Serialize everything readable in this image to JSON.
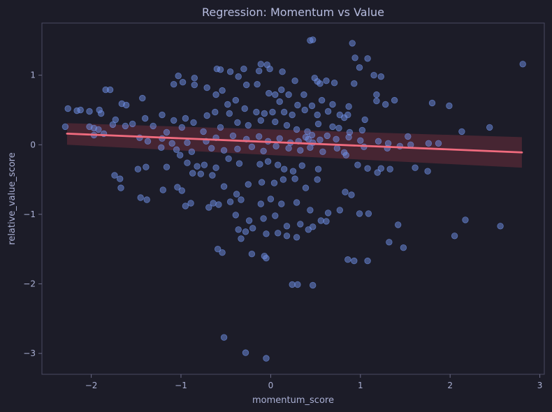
{
  "chart_data": {
    "type": "scatter",
    "title": "Regression: Momentum vs Value",
    "xlabel": "momentum_score",
    "ylabel": "relative_value_score",
    "xlim": [
      -2.55,
      3.05
    ],
    "ylim": [
      -3.3,
      1.75
    ],
    "xticks": [
      -2,
      -1,
      0,
      1,
      2,
      3
    ],
    "xtick_labels": [
      "−2",
      "−1",
      "0",
      "1",
      "2",
      "3"
    ],
    "yticks": [
      -3,
      -2,
      -1,
      0,
      1
    ],
    "ytick_labels": [
      "−3",
      "−2",
      "−1",
      "0",
      "1"
    ],
    "grid": false,
    "colors": {
      "background": "#1c1c28",
      "points": "#6f90e6",
      "line": "#f06b7e",
      "band": "#6a2d3a",
      "frame": "#4a4a62"
    },
    "regression": {
      "x": [
        -2.27,
        2.8
      ],
      "y": [
        0.16,
        -0.11
      ],
      "ci_at_x_min": [
        0.0,
        0.31
      ],
      "ci_at_x_max": [
        -0.33,
        0.11
      ]
    },
    "points": [
      [
        0.44,
        1.5
      ],
      [
        0.47,
        1.51
      ],
      [
        0.91,
        1.46
      ],
      [
        2.81,
        1.16
      ],
      [
        0.94,
        1.25
      ],
      [
        1.08,
        1.24
      ],
      [
        -0.11,
        1.16
      ],
      [
        -0.04,
        1.15
      ],
      [
        0.99,
        1.11
      ],
      [
        -0.56,
        1.08
      ],
      [
        -0.6,
        1.09
      ],
      [
        -0.3,
        1.09
      ],
      [
        -0.45,
        1.05
      ],
      [
        -1.03,
        0.99
      ],
      [
        0.13,
        1.05
      ],
      [
        -0.01,
        1.09
      ],
      [
        -0.13,
        1.06
      ],
      [
        0.49,
        0.96
      ],
      [
        1.15,
        1.0
      ],
      [
        1.23,
        0.98
      ],
      [
        -0.85,
        0.86
      ],
      [
        -0.98,
        0.9
      ],
      [
        -1.08,
        0.87
      ],
      [
        -0.85,
        0.96
      ],
      [
        -0.36,
        0.98
      ],
      [
        0.52,
        0.91
      ],
      [
        0.55,
        0.88
      ],
      [
        0.71,
        0.89
      ],
      [
        -0.15,
        0.87
      ],
      [
        -0.27,
        0.86
      ],
      [
        0.62,
        0.92
      ],
      [
        0.27,
        0.92
      ],
      [
        0.12,
        0.79
      ],
      [
        -0.02,
        0.74
      ],
      [
        0.05,
        0.72
      ],
      [
        0.2,
        0.72
      ],
      [
        -0.71,
        0.82
      ],
      [
        -0.54,
        0.78
      ],
      [
        0.37,
        0.72
      ],
      [
        0.93,
        0.88
      ],
      [
        1.18,
        0.72
      ],
      [
        -1.84,
        0.79
      ],
      [
        -1.79,
        0.79
      ],
      [
        -1.66,
        0.59
      ],
      [
        -1.61,
        0.57
      ],
      [
        -1.43,
        0.67
      ],
      [
        -0.39,
        0.64
      ],
      [
        -0.48,
        0.58
      ],
      [
        -0.61,
        0.72
      ],
      [
        0.1,
        0.62
      ],
      [
        0.3,
        0.57
      ],
      [
        0.46,
        0.56
      ],
      [
        0.57,
        0.64
      ],
      [
        0.69,
        0.58
      ],
      [
        1.38,
        0.64
      ],
      [
        1.18,
        0.63
      ],
      [
        1.28,
        0.58
      ],
      [
        1.8,
        0.6
      ],
      [
        1.99,
        0.56
      ],
      [
        0.87,
        0.55
      ],
      [
        -2.26,
        0.52
      ],
      [
        -2.16,
        0.49
      ],
      [
        -2.12,
        0.5
      ],
      [
        -2.02,
        0.48
      ],
      [
        -1.91,
        0.5
      ],
      [
        -1.89,
        0.45
      ],
      [
        -1.73,
        0.36
      ],
      [
        -1.4,
        0.38
      ],
      [
        -1.21,
        0.43
      ],
      [
        -1.08,
        0.35
      ],
      [
        -0.95,
        0.38
      ],
      [
        -0.71,
        0.42
      ],
      [
        -0.62,
        0.47
      ],
      [
        -0.46,
        0.45
      ],
      [
        -0.29,
        0.52
      ],
      [
        -0.16,
        0.47
      ],
      [
        -0.07,
        0.45
      ],
      [
        0.02,
        0.47
      ],
      [
        0.15,
        0.47
      ],
      [
        0.24,
        0.43
      ],
      [
        0.38,
        0.5
      ],
      [
        0.52,
        0.43
      ],
      [
        0.64,
        0.48
      ],
      [
        0.77,
        0.43
      ],
      [
        0.82,
        0.39
      ],
      [
        1.05,
        0.36
      ],
      [
        0.86,
        0.43
      ],
      [
        -2.02,
        0.26
      ],
      [
        -1.97,
        0.24
      ],
      [
        -1.92,
        0.22
      ],
      [
        -1.76,
        0.29
      ],
      [
        -1.62,
        0.27
      ],
      [
        -1.54,
        0.3
      ],
      [
        -1.31,
        0.27
      ],
      [
        -1.16,
        0.18
      ],
      [
        -0.99,
        0.25
      ],
      [
        -0.86,
        0.32
      ],
      [
        -0.75,
        0.19
      ],
      [
        -0.56,
        0.25
      ],
      [
        -0.37,
        0.32
      ],
      [
        -0.25,
        0.28
      ],
      [
        -0.11,
        0.35
      ],
      [
        0.05,
        0.33
      ],
      [
        0.18,
        0.28
      ],
      [
        0.29,
        0.22
      ],
      [
        0.41,
        0.19
      ],
      [
        0.53,
        0.3
      ],
      [
        0.69,
        0.26
      ],
      [
        0.76,
        0.24
      ],
      [
        0.88,
        0.18
      ],
      [
        1.02,
        0.21
      ],
      [
        1.53,
        0.12
      ],
      [
        2.13,
        0.19
      ],
      [
        2.44,
        0.25
      ],
      [
        -2.29,
        0.26
      ],
      [
        -1.97,
        0.14
      ],
      [
        -1.86,
        0.16
      ],
      [
        -1.46,
        0.1
      ],
      [
        -1.37,
        0.05
      ],
      [
        -1.21,
        0.09
      ],
      [
        -1.1,
        0.02
      ],
      [
        -0.93,
        0.03
      ],
      [
        -0.72,
        0.05
      ],
      [
        -0.61,
        0.1
      ],
      [
        -0.42,
        0.13
      ],
      [
        -0.27,
        0.08
      ],
      [
        -0.13,
        0.12
      ],
      [
        -0.03,
        0.05
      ],
      [
        0.1,
        0.09
      ],
      [
        0.22,
        0.03
      ],
      [
        0.31,
        0.05
      ],
      [
        0.39,
        0.11
      ],
      [
        0.47,
        0.03
      ],
      [
        0.55,
        0.07
      ],
      [
        0.63,
        0.13
      ],
      [
        0.73,
        0.08
      ],
      [
        0.87,
        0.11
      ],
      [
        1.0,
        0.06
      ],
      [
        1.2,
        0.05
      ],
      [
        1.31,
        0.02
      ],
      [
        1.56,
        0.0
      ],
      [
        1.76,
        0.02
      ],
      [
        1.87,
        0.02
      ],
      [
        0.42,
        0.08
      ],
      [
        0.46,
        0.14
      ],
      [
        -1.22,
        -0.04
      ],
      [
        -1.05,
        -0.07
      ],
      [
        -0.88,
        -0.1
      ],
      [
        -0.66,
        -0.05
      ],
      [
        -0.52,
        -0.08
      ],
      [
        -0.37,
        -0.06
      ],
      [
        -0.21,
        -0.03
      ],
      [
        -0.08,
        -0.09
      ],
      [
        0.06,
        -0.02
      ],
      [
        0.2,
        -0.05
      ],
      [
        0.33,
        -0.08
      ],
      [
        0.44,
        -0.04
      ],
      [
        0.58,
        -0.1
      ],
      [
        0.74,
        -0.05
      ],
      [
        0.82,
        -0.11
      ],
      [
        1.04,
        -0.03
      ],
      [
        1.3,
        -0.05
      ],
      [
        1.44,
        -0.02
      ],
      [
        -1.48,
        -0.35
      ],
      [
        -1.39,
        -0.32
      ],
      [
        -1.16,
        -0.32
      ],
      [
        -1.01,
        -0.15
      ],
      [
        -0.93,
        -0.26
      ],
      [
        -0.82,
        -0.31
      ],
      [
        -0.74,
        -0.29
      ],
      [
        -0.61,
        -0.33
      ],
      [
        -0.47,
        -0.2
      ],
      [
        -0.35,
        -0.27
      ],
      [
        -0.12,
        -0.28
      ],
      [
        -0.03,
        -0.24
      ],
      [
        0.08,
        -0.29
      ],
      [
        0.15,
        -0.35
      ],
      [
        0.25,
        -0.38
      ],
      [
        0.35,
        -0.3
      ],
      [
        0.53,
        -0.35
      ],
      [
        0.84,
        -0.15
      ],
      [
        0.97,
        -0.29
      ],
      [
        1.08,
        -0.34
      ],
      [
        1.19,
        -0.4
      ],
      [
        1.23,
        -0.34
      ],
      [
        1.33,
        -0.35
      ],
      [
        1.61,
        -0.33
      ],
      [
        1.75,
        -0.38
      ],
      [
        -1.74,
        -0.44
      ],
      [
        -1.68,
        -0.49
      ],
      [
        -1.67,
        -0.62
      ],
      [
        -1.2,
        -0.65
      ],
      [
        -1.04,
        -0.61
      ],
      [
        -0.99,
        -0.66
      ],
      [
        -0.87,
        -0.41
      ],
      [
        -0.78,
        -0.42
      ],
      [
        -0.65,
        -0.44
      ],
      [
        -0.52,
        -0.6
      ],
      [
        -0.38,
        -0.71
      ],
      [
        -0.25,
        -0.57
      ],
      [
        -0.1,
        -0.54
      ],
      [
        0.04,
        -0.55
      ],
      [
        0.14,
        -0.5
      ],
      [
        0.27,
        -0.49
      ],
      [
        0.39,
        -0.62
      ],
      [
        0.52,
        -0.5
      ],
      [
        0.83,
        -0.68
      ],
      [
        0.9,
        -0.72
      ],
      [
        -1.45,
        -0.76
      ],
      [
        -1.38,
        -0.79
      ],
      [
        -0.95,
        -0.88
      ],
      [
        -0.89,
        -0.84
      ],
      [
        -0.69,
        -0.9
      ],
      [
        -0.64,
        -0.84
      ],
      [
        -0.58,
        -0.86
      ],
      [
        -0.45,
        -0.82
      ],
      [
        -0.33,
        -0.79
      ],
      [
        -0.11,
        -0.85
      ],
      [
        0.0,
        -0.78
      ],
      [
        0.12,
        -0.85
      ],
      [
        0.29,
        -0.83
      ],
      [
        0.44,
        -0.94
      ],
      [
        0.64,
        -0.98
      ],
      [
        0.77,
        -0.94
      ],
      [
        0.99,
        -0.99
      ],
      [
        1.09,
        -0.99
      ],
      [
        -0.39,
        -1.01
      ],
      [
        -0.24,
        -1.09
      ],
      [
        -0.08,
        -1.06
      ],
      [
        0.05,
        -1.02
      ],
      [
        0.18,
        -1.17
      ],
      [
        0.33,
        -1.14
      ],
      [
        0.47,
        -1.18
      ],
      [
        0.56,
        -1.09
      ],
      [
        0.62,
        -1.1
      ],
      [
        1.42,
        -1.15
      ],
      [
        2.17,
        -1.08
      ],
      [
        2.56,
        -1.17
      ],
      [
        -0.36,
        -1.22
      ],
      [
        -0.28,
        -1.25
      ],
      [
        -0.2,
        -1.2
      ],
      [
        -0.05,
        -1.28
      ],
      [
        0.08,
        -1.27
      ],
      [
        0.18,
        -1.31
      ],
      [
        0.29,
        -1.33
      ],
      [
        0.42,
        -1.22
      ],
      [
        -0.54,
        -1.55
      ],
      [
        -0.59,
        -1.5
      ],
      [
        -0.33,
        -1.35
      ],
      [
        -0.21,
        -1.57
      ],
      [
        -0.07,
        -1.6
      ],
      [
        -0.05,
        -1.63
      ],
      [
        1.32,
        -1.4
      ],
      [
        1.48,
        -1.48
      ],
      [
        2.05,
        -1.31
      ],
      [
        0.86,
        -1.65
      ],
      [
        0.93,
        -1.67
      ],
      [
        1.08,
        -1.67
      ],
      [
        0.24,
        -2.01
      ],
      [
        0.3,
        -2.01
      ],
      [
        0.47,
        -2.02
      ],
      [
        -0.52,
        -2.77
      ],
      [
        -0.28,
        -2.99
      ],
      [
        -0.05,
        -3.07
      ]
    ]
  }
}
